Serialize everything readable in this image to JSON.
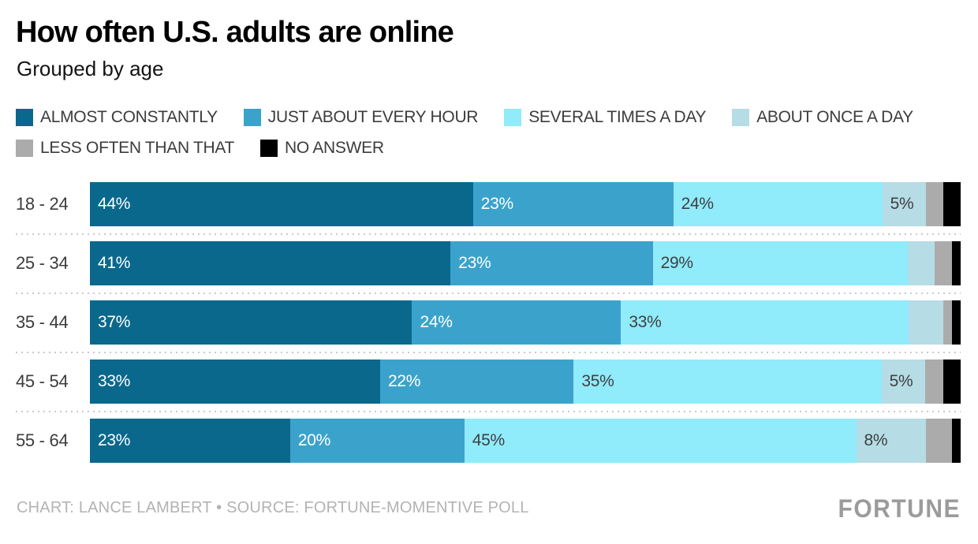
{
  "title": "How often U.S. adults are online",
  "subtitle": "Grouped by age",
  "legend": [
    {
      "label": "ALMOST CONSTANTLY",
      "color": "#0A688C"
    },
    {
      "label": "JUST ABOUT EVERY HOUR",
      "color": "#3BA3CB"
    },
    {
      "label": "SEVERAL TIMES A DAY",
      "color": "#90EBFB"
    },
    {
      "label": "ABOUT ONCE A DAY",
      "color": "#B6DCE6"
    },
    {
      "label": "LESS OFTEN THAN THAT",
      "color": "#ABABAB"
    },
    {
      "label": "NO ANSWER",
      "color": "#000000"
    }
  ],
  "chart_data": {
    "type": "bar",
    "orientation": "horizontal",
    "stacked": true,
    "unit": "%",
    "title": "How often U.S. adults are online",
    "subtitle": "Grouped by age",
    "legend_position": "top",
    "grid": "dotted row separators",
    "categories": [
      "18 - 24",
      "25 - 34",
      "35 - 44",
      "45 - 54",
      "55 - 64"
    ],
    "series": [
      {
        "name": "ALMOST CONSTANTLY",
        "color": "#0A688C",
        "values": [
          44,
          41,
          37,
          33,
          23
        ]
      },
      {
        "name": "JUST ABOUT EVERY HOUR",
        "color": "#3BA3CB",
        "values": [
          23,
          23,
          24,
          22,
          20
        ]
      },
      {
        "name": "SEVERAL TIMES A DAY",
        "color": "#90EBFB",
        "values": [
          24,
          29,
          33,
          35,
          45
        ]
      },
      {
        "name": "ABOUT ONCE A DAY",
        "color": "#B6DCE6",
        "values": [
          5,
          3,
          4,
          5,
          8
        ]
      },
      {
        "name": "LESS OFTEN THAN THAT",
        "color": "#ABABAB",
        "values": [
          2,
          2,
          1,
          2,
          3
        ]
      },
      {
        "name": "NO ANSWER",
        "color": "#000000",
        "values": [
          2,
          1,
          1,
          2,
          1
        ]
      }
    ],
    "rows": [
      {
        "category": "18 - 24",
        "segments": [
          {
            "value": 44,
            "label": "44%"
          },
          {
            "value": 23,
            "label": "23%"
          },
          {
            "value": 24,
            "label": "24%"
          },
          {
            "value": 5,
            "label": "5%"
          },
          {
            "value": 2,
            "label": ""
          },
          {
            "value": 2,
            "label": ""
          }
        ]
      },
      {
        "category": "25 - 34",
        "segments": [
          {
            "value": 41,
            "label": "41%"
          },
          {
            "value": 23,
            "label": "23%"
          },
          {
            "value": 29,
            "label": "29%"
          },
          {
            "value": 3,
            "label": ""
          },
          {
            "value": 2,
            "label": ""
          },
          {
            "value": 1,
            "label": ""
          }
        ]
      },
      {
        "category": "35 - 44",
        "segments": [
          {
            "value": 37,
            "label": "37%"
          },
          {
            "value": 24,
            "label": "24%"
          },
          {
            "value": 33,
            "label": "33%"
          },
          {
            "value": 4,
            "label": ""
          },
          {
            "value": 1,
            "label": ""
          },
          {
            "value": 1,
            "label": ""
          }
        ]
      },
      {
        "category": "45 - 54",
        "segments": [
          {
            "value": 33,
            "label": "33%"
          },
          {
            "value": 22,
            "label": "22%"
          },
          {
            "value": 35,
            "label": "35%"
          },
          {
            "value": 5,
            "label": "5%"
          },
          {
            "value": 2,
            "label": ""
          },
          {
            "value": 2,
            "label": ""
          }
        ]
      },
      {
        "category": "55 - 64",
        "segments": [
          {
            "value": 23,
            "label": "23%"
          },
          {
            "value": 20,
            "label": "20%"
          },
          {
            "value": 45,
            "label": "45%"
          },
          {
            "value": 8,
            "label": "8%"
          },
          {
            "value": 3,
            "label": ""
          },
          {
            "value": 1,
            "label": ""
          }
        ]
      }
    ]
  },
  "footer": {
    "credit": "CHART: LANCE LAMBERT • SOURCE: FORTUNE-MOMENTIVE POLL",
    "logo": "FORTUNE"
  }
}
